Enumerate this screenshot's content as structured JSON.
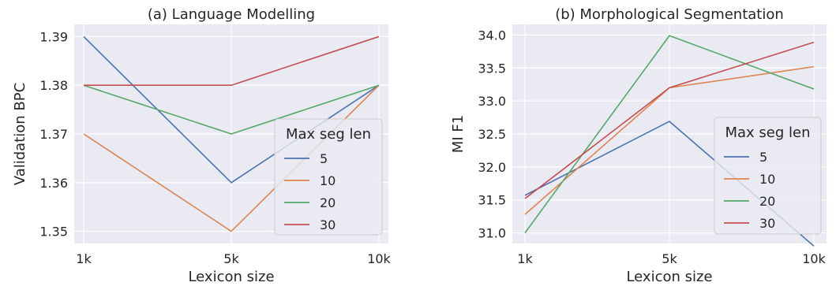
{
  "chart_data": [
    {
      "type": "line",
      "title": "(a) Language Modelling",
      "xlabel": "Lexicon size",
      "ylabel": "Validation BPC",
      "categories": [
        "1k",
        "5k",
        "10k"
      ],
      "ylim": [
        1.3475,
        1.3925
      ],
      "yticks": [
        1.35,
        1.36,
        1.37,
        1.38,
        1.39
      ],
      "ytick_labels": [
        "1.35",
        "1.36",
        "1.37",
        "1.38",
        "1.39"
      ],
      "grid": true,
      "legend": {
        "title": "Max seg len",
        "placement": "center-right"
      },
      "series": [
        {
          "name": "5",
          "color": "#4c72b0",
          "values": [
            1.39,
            1.36,
            1.38
          ]
        },
        {
          "name": "10",
          "color": "#dd8452",
          "values": [
            1.37,
            1.35,
            1.38
          ]
        },
        {
          "name": "20",
          "color": "#55a868",
          "values": [
            1.38,
            1.37,
            1.38
          ]
        },
        {
          "name": "30",
          "color": "#c44e52",
          "values": [
            1.38,
            1.38,
            1.39
          ]
        }
      ]
    },
    {
      "type": "line",
      "title": "(b) Morphological Segmentation",
      "xlabel": "Lexicon size",
      "ylabel": "MI F1",
      "categories": [
        "1k",
        "5k",
        "10k"
      ],
      "ylim": [
        30.84,
        34.16
      ],
      "yticks": [
        31.0,
        31.5,
        32.0,
        32.5,
        33.0,
        33.5,
        34.0
      ],
      "ytick_labels": [
        "31.0",
        "31.5",
        "32.0",
        "32.5",
        "33.0",
        "33.5",
        "34.0"
      ],
      "grid": true,
      "legend": {
        "title": "Max seg len",
        "placement": "lower-right"
      },
      "series": [
        {
          "name": "5",
          "color": "#4c72b0",
          "values": [
            31.57,
            32.69,
            30.8
          ]
        },
        {
          "name": "10",
          "color": "#dd8452",
          "values": [
            31.28,
            33.2,
            33.52
          ]
        },
        {
          "name": "20",
          "color": "#55a868",
          "values": [
            31.0,
            33.99,
            33.18
          ]
        },
        {
          "name": "30",
          "color": "#c44e52",
          "values": [
            31.52,
            33.2,
            33.89
          ]
        }
      ]
    }
  ],
  "style": {
    "panel_background": "#eaeaf2",
    "grid_color": "#ffffff"
  }
}
